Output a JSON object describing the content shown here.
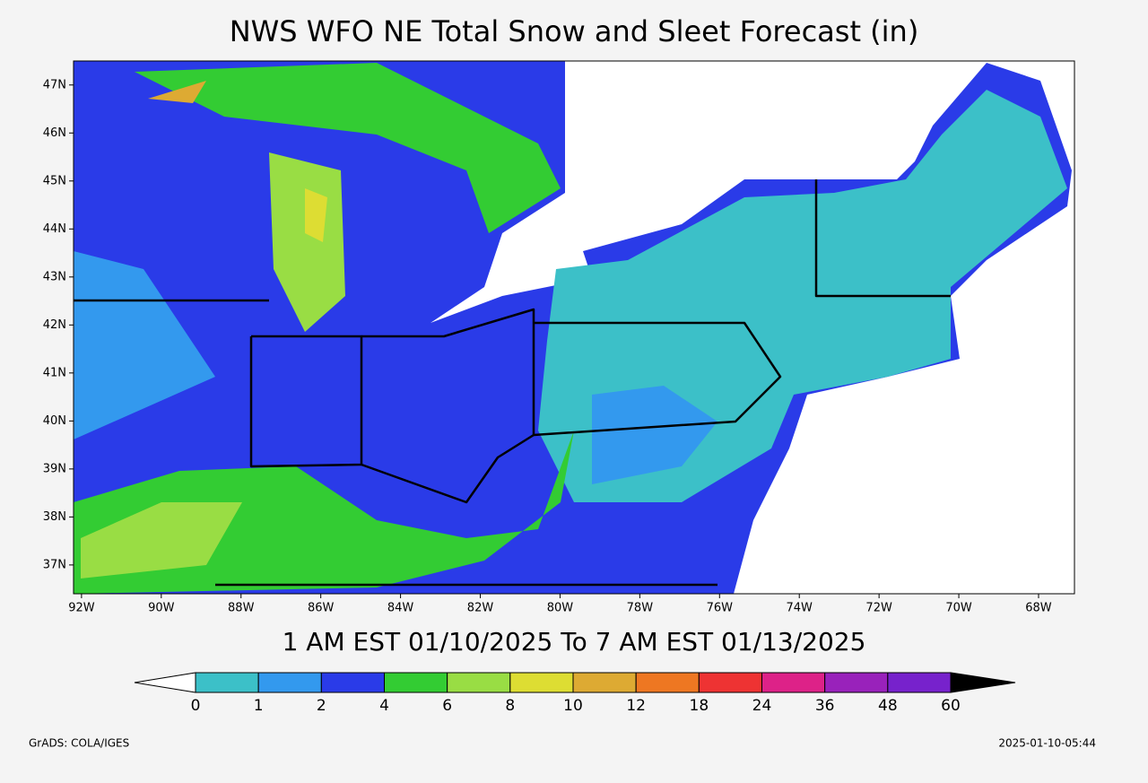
{
  "title": "NWS WFO NE Total Snow and Sleet Forecast (in)",
  "valid_period": "1 AM EST 01/10/2025 To 7 AM EST 01/13/2025",
  "map": {
    "lon_range": [
      -92.2,
      -67.1
    ],
    "lat_range": [
      36.4,
      47.5
    ],
    "lon_ticks": [
      {
        "value": -92,
        "label": "92W"
      },
      {
        "value": -90,
        "label": "90W"
      },
      {
        "value": -88,
        "label": "88W"
      },
      {
        "value": -86,
        "label": "86W"
      },
      {
        "value": -84,
        "label": "84W"
      },
      {
        "value": -82,
        "label": "82W"
      },
      {
        "value": -80,
        "label": "80W"
      },
      {
        "value": -78,
        "label": "78W"
      },
      {
        "value": -76,
        "label": "76W"
      },
      {
        "value": -74,
        "label": "74W"
      },
      {
        "value": -72,
        "label": "72W"
      },
      {
        "value": -70,
        "label": "70W"
      },
      {
        "value": -68,
        "label": "68W"
      }
    ],
    "lat_ticks": [
      {
        "value": 37,
        "label": "37N"
      },
      {
        "value": 38,
        "label": "38N"
      },
      {
        "value": 39,
        "label": "39N"
      },
      {
        "value": 40,
        "label": "40N"
      },
      {
        "value": 41,
        "label": "41N"
      },
      {
        "value": 42,
        "label": "42N"
      },
      {
        "value": 43,
        "label": "43N"
      },
      {
        "value": 44,
        "label": "44N"
      },
      {
        "value": 45,
        "label": "45N"
      },
      {
        "value": 46,
        "label": "46N"
      },
      {
        "value": 47,
        "label": "47N"
      }
    ]
  },
  "legend": {
    "bounds": [
      0,
      1,
      2,
      4,
      6,
      8,
      10,
      12,
      18,
      24,
      36,
      48,
      60
    ],
    "colors": [
      "#3cc0c8",
      "#3399ee",
      "#2a3be8",
      "#33cc33",
      "#99dd44",
      "#dddd33",
      "#ddaa33",
      "#ee7722",
      "#ee3333",
      "#dd2288",
      "#9922bb",
      "#7722cc"
    ]
  },
  "footer_left": "GrADS: COLA/IGES",
  "footer_right": "2025-01-10-05:44"
}
